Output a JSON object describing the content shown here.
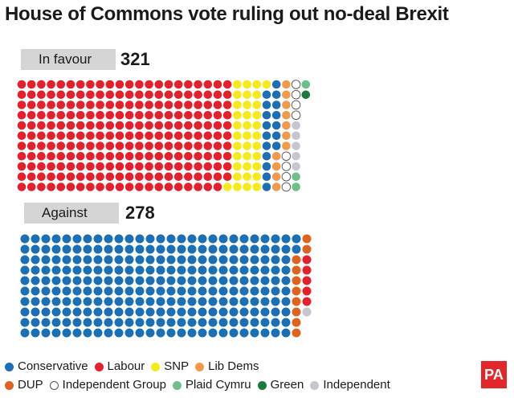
{
  "chart_data": {
    "type": "waffle",
    "title": "House of Commons vote ruling out no-deal Brexit",
    "parties": [
      {
        "name": "Conservative",
        "color": "#1a6fb5"
      },
      {
        "name": "Labour",
        "color": "#e3202b"
      },
      {
        "name": "SNP",
        "color": "#f7ea1a"
      },
      {
        "name": "Lib Dems",
        "color": "#f29a4a"
      },
      {
        "name": "DUP",
        "color": "#e0621f"
      },
      {
        "name": "Independent Group",
        "color": "#ffffff"
      },
      {
        "name": "Plaid Cymru",
        "color": "#6fbf8a"
      },
      {
        "name": "Green",
        "color": "#1e7a3c"
      },
      {
        "name": "Independent",
        "color": "#c6c6d2"
      }
    ],
    "votes": [
      {
        "label": "In favour",
        "total": 321,
        "counts": {
          "Labour": 241,
          "SNP": 35,
          "Conservative": 17,
          "Lib Dems": 11,
          "Independent Group": 8,
          "Independent": 5,
          "Plaid Cymru": 3,
          "Green": 1
        }
      },
      {
        "label": "Against",
        "total": 278,
        "counts": {
          "Conservative": 262,
          "DUP": 10,
          "Labour": 5,
          "Independent": 1
        }
      }
    ]
  },
  "legend_rows": [
    [
      "Conservative",
      "Labour",
      "SNP",
      "Lib Dems"
    ],
    [
      "DUP",
      "Independent Group",
      "Plaid Cymru",
      "Green",
      "Independent"
    ]
  ],
  "logo_text": "PA"
}
